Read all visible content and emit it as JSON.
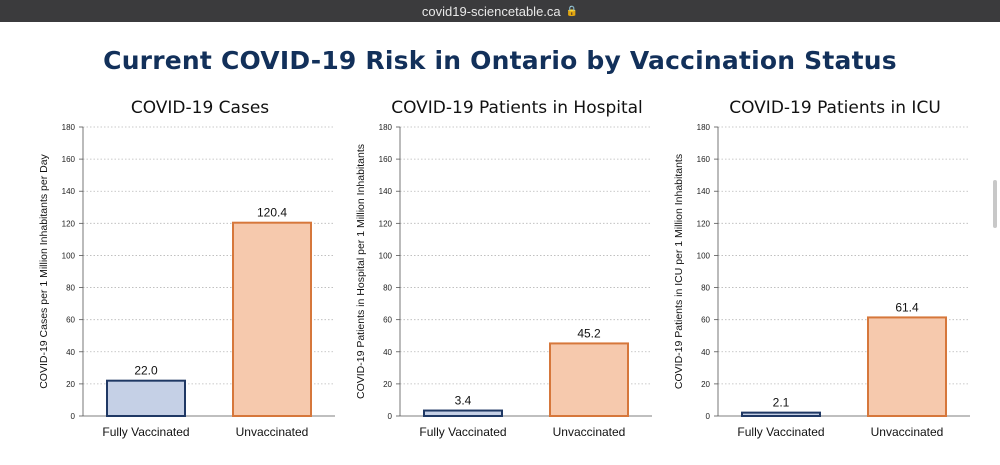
{
  "browser": {
    "url": "covid19-sciencetable.ca",
    "lock_icon": "lock-icon"
  },
  "page": {
    "title": "Current COVID-19 Risk in Ontario by Vaccination Status"
  },
  "chart_data": [
    {
      "type": "bar",
      "title": "COVID-19 Cases",
      "ylabel": "COVID-19 Cases per 1 Million Inhabitants per Day",
      "categories": [
        "Fully Vaccinated",
        "Unvaccinated"
      ],
      "values": [
        22.0,
        120.4
      ],
      "value_labels": [
        "22.0",
        "120.4"
      ],
      "ylim": [
        0,
        180
      ],
      "yticks": [
        "0",
        "20",
        "40",
        "60",
        "80",
        "100",
        "120",
        "140",
        "160",
        "180"
      ],
      "ytick_values": [
        0,
        20,
        40,
        60,
        80,
        100,
        120,
        140,
        160,
        180
      ],
      "grid": true
    },
    {
      "type": "bar",
      "title": "COVID-19 Patients in Hospital",
      "ylabel": "COVID-19 Patients in Hospital per 1 Million Inhabitants",
      "categories": [
        "Fully Vaccinated",
        "Unvaccinated"
      ],
      "values": [
        3.4,
        45.2
      ],
      "value_labels": [
        "3.4",
        "45.2"
      ],
      "ylim": [
        0,
        180
      ],
      "yticks": [
        "0",
        "20",
        "40",
        "60",
        "80",
        "100",
        "120",
        "140",
        "160",
        "180"
      ],
      "ytick_values": [
        0,
        20,
        40,
        60,
        80,
        100,
        120,
        140,
        160,
        180
      ],
      "grid": true
    },
    {
      "type": "bar",
      "title": "COVID-19 Patients in ICU",
      "ylabel": "COVID-19 Patients in ICU  per 1 Million Inhabitants",
      "categories": [
        "Fully Vaccinated",
        "Unvaccinated"
      ],
      "values": [
        2.1,
        61.4
      ],
      "value_labels": [
        "2.1",
        "61.4"
      ],
      "ylim": [
        0,
        180
      ],
      "yticks": [
        "0",
        "20",
        "40",
        "60",
        "80",
        "100",
        "120",
        "140",
        "160",
        "180"
      ],
      "ytick_values": [
        0,
        20,
        40,
        60,
        80,
        100,
        120,
        140,
        160,
        180
      ],
      "grid": true
    }
  ],
  "colors": {
    "vaccinated_fill": "#c5d0e6",
    "vaccinated_stroke": "#1f3864",
    "unvaccinated_fill": "#f6c9ad",
    "unvaccinated_stroke": "#d6773b",
    "title": "#12305a",
    "grid": "#b8b8b8"
  }
}
